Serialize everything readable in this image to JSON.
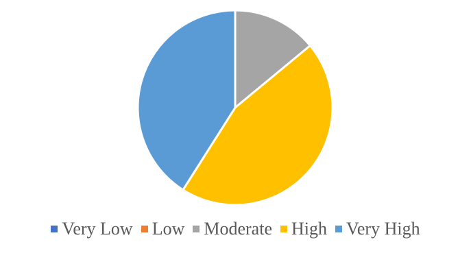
{
  "chart_data": {
    "type": "pie",
    "title": "",
    "categories": [
      "Very Low",
      "Low",
      "Moderate",
      "High",
      "Very High"
    ],
    "values": [
      0,
      0,
      14,
      45,
      41
    ],
    "colors": [
      "#4472C4",
      "#ED7D31",
      "#A5A5A5",
      "#FFC000",
      "#5B9BD5"
    ],
    "start_angle_deg": 0,
    "legend_position": "bottom"
  }
}
